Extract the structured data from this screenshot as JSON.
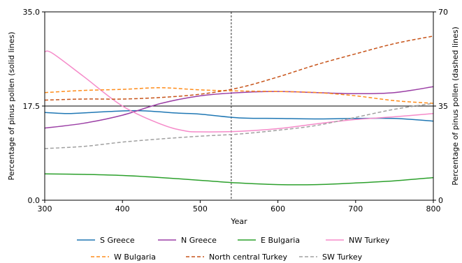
{
  "chart_data": {
    "type": "line",
    "xlabel": "Year",
    "ylabel_left": "Percentage of pinus pollen (solid lines)",
    "ylabel_right": "Percentage of pinus pollen (dashed lines)",
    "xlim": [
      300,
      800
    ],
    "ylim_left": [
      0,
      35
    ],
    "ylim_right": [
      0,
      70
    ],
    "x_ticks": [
      "300",
      "400",
      "500",
      "600",
      "700",
      "800"
    ],
    "left_ticks": [
      "0.0",
      "17.5",
      "35.0"
    ],
    "right_ticks": [
      "0",
      "35",
      "70"
    ],
    "reference_lines": {
      "horizontal_left_value": 17.5,
      "vertical_x": 540
    },
    "legend_position": "bottom",
    "series": [
      {
        "name": "S Greece",
        "axis": "left",
        "style": "solid",
        "color": "#1f77b4",
        "x": [
          300,
          330,
          360,
          400,
          430,
          470,
          500,
          550,
          600,
          650,
          700,
          750,
          800
        ],
        "y": [
          16.3,
          16.1,
          16.3,
          16.6,
          16.6,
          16.2,
          16.0,
          15.3,
          15.2,
          15.1,
          15.2,
          15.2,
          14.7
        ]
      },
      {
        "name": "N Greece",
        "axis": "left",
        "style": "solid",
        "color": "#9b3fa5",
        "x": [
          300,
          350,
          400,
          450,
          500,
          550,
          600,
          650,
          700,
          750,
          800
        ],
        "y": [
          13.4,
          14.3,
          15.8,
          18.0,
          19.4,
          20.0,
          20.2,
          20.0,
          19.8,
          20.0,
          21.1
        ]
      },
      {
        "name": "E Bulgaria",
        "axis": "left",
        "style": "solid",
        "color": "#2ca02c",
        "x": [
          300,
          350,
          400,
          450,
          500,
          550,
          600,
          650,
          700,
          750,
          800
        ],
        "y": [
          4.9,
          4.8,
          4.6,
          4.2,
          3.7,
          3.2,
          2.9,
          2.9,
          3.2,
          3.6,
          4.2
        ]
      },
      {
        "name": "NW Turkey",
        "axis": "left",
        "style": "solid",
        "color": "#f58ac9",
        "x": [
          300,
          310,
          350,
          400,
          450,
          480,
          500,
          550,
          600,
          650,
          700,
          750,
          800
        ],
        "y": [
          27.6,
          27.3,
          23.0,
          17.5,
          14.1,
          12.9,
          12.7,
          12.8,
          13.3,
          14.2,
          15.0,
          15.5,
          16.1
        ]
      },
      {
        "name": "W Bulgaria",
        "axis": "right",
        "style": "dashed",
        "color": "#ff8c1a",
        "x": [
          300,
          350,
          400,
          450,
          500,
          550,
          600,
          650,
          700,
          750,
          800
        ],
        "y": [
          40.0,
          40.8,
          41.2,
          41.8,
          41.0,
          40.6,
          40.4,
          40.0,
          38.8,
          37.0,
          36.0
        ]
      },
      {
        "name": "North central Turkey",
        "axis": "right",
        "style": "dashed",
        "color": "#c7541a",
        "x": [
          300,
          350,
          400,
          450,
          500,
          550,
          600,
          650,
          700,
          750,
          800
        ],
        "y": [
          37.2,
          37.6,
          37.6,
          38.2,
          39.4,
          41.8,
          45.8,
          50.4,
          54.4,
          58.2,
          61.0
        ]
      },
      {
        "name": "SW Turkey",
        "axis": "right",
        "style": "dashed",
        "color": "#a0a0a0",
        "x": [
          300,
          350,
          400,
          450,
          500,
          550,
          600,
          650,
          700,
          750,
          800
        ],
        "y": [
          19.2,
          20.0,
          21.6,
          22.8,
          23.8,
          24.6,
          26.0,
          27.8,
          30.8,
          33.8,
          36.0
        ]
      }
    ]
  }
}
